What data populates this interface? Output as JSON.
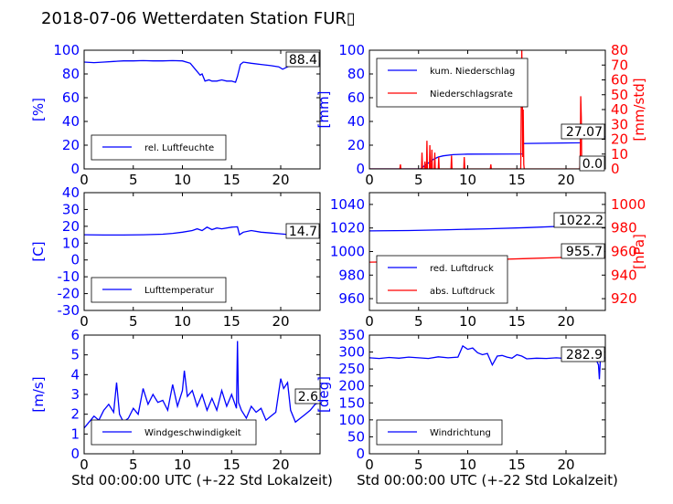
{
  "title": "2018-07-06 Wetterdaten Station FUR▯",
  "xlabel": "Std 00:00:00 UTC (+-22 Std Lokalzeit)",
  "colors": {
    "left_axis": "#0000ff",
    "right_axis": "#ff0000",
    "line_primary": "#0000ff",
    "line_secondary": "#ff0000"
  },
  "chart_data": [
    {
      "type": "line",
      "ylabel": "[%]",
      "xlim": [
        0,
        24
      ],
      "ylim": [
        0,
        100
      ],
      "xticks": [
        0,
        5,
        10,
        15,
        20
      ],
      "yticks": [
        0,
        20,
        40,
        60,
        80,
        100
      ],
      "legend": {
        "position": "lower-left",
        "entries": [
          "rel. Luftfeuchte"
        ]
      },
      "annotation": "88.4",
      "series": [
        {
          "name": "rel. Luftfeuchte",
          "color": "#0000ff",
          "x": [
            0,
            1,
            2,
            3,
            4,
            5,
            6,
            7,
            8,
            9,
            10,
            10.8,
            11.3,
            11.8,
            12.0,
            12.3,
            12.7,
            13.0,
            13.5,
            14.0,
            14.5,
            15.0,
            15.4,
            15.6,
            15.9,
            16.2,
            17,
            18,
            19,
            19.8,
            20.2,
            20.7,
            21.3,
            22,
            23,
            24
          ],
          "y": [
            90,
            89.5,
            90,
            90.5,
            91,
            91,
            91.2,
            91,
            91,
            91.2,
            91,
            89,
            84,
            79,
            80,
            74,
            75,
            74,
            74,
            75,
            74,
            74,
            73,
            78,
            88,
            90,
            89,
            88,
            87,
            86,
            84,
            86,
            88,
            88.5,
            88.4,
            88.4
          ]
        }
      ]
    },
    {
      "type": "line",
      "ylabel": "[mm]",
      "y2label": "[mm/std]",
      "xlim": [
        0,
        24
      ],
      "ylim": [
        0,
        100
      ],
      "y2lim": [
        0,
        80
      ],
      "xticks": [
        0,
        5,
        10,
        15,
        20
      ],
      "yticks": [
        0,
        20,
        40,
        60,
        80,
        100
      ],
      "y2ticks": [
        0,
        10,
        20,
        30,
        40,
        50,
        60,
        70,
        80
      ],
      "legend": {
        "position": "upper-left",
        "entries": [
          "kum. Niederschlag",
          "Niederschlagsrate"
        ]
      },
      "annotations": [
        "27.07",
        "0.0"
      ],
      "series": [
        {
          "name": "kum. Niederschlag",
          "color": "#0000ff",
          "axis": "left",
          "x": [
            0,
            5.2,
            5.5,
            6.0,
            6.5,
            7.0,
            7.5,
            8.5,
            10.0,
            15.6,
            15.65,
            16.0,
            21.5,
            21.55,
            24
          ],
          "y": [
            0,
            0,
            2,
            5,
            8,
            10,
            11,
            12,
            12.5,
            12.6,
            21.4,
            21.5,
            22,
            27.07,
            27.07
          ]
        },
        {
          "name": "Niederschlagsrate",
          "color": "#ff0000",
          "axis": "right",
          "x": [
            0,
            3.1,
            3.15,
            3.2,
            5.3,
            5.35,
            5.4,
            5.6,
            5.65,
            5.7,
            5.8,
            5.85,
            5.9,
            6.1,
            6.15,
            6.2,
            6.3,
            6.35,
            6.4,
            6.6,
            6.65,
            6.7,
            7.0,
            7.05,
            7.1,
            8.3,
            8.35,
            8.4,
            9.6,
            9.65,
            9.7,
            12.3,
            12.35,
            12.4,
            15.4,
            15.45,
            15.5,
            15.55,
            15.6,
            15.65,
            15.7,
            15.75,
            21.4,
            21.45,
            21.5,
            21.55,
            21.6,
            24
          ],
          "y": [
            0,
            0,
            3,
            0,
            0,
            11,
            0,
            0,
            5,
            0,
            0,
            19,
            0,
            0,
            16,
            0,
            0,
            13,
            0,
            0,
            11,
            0,
            0,
            8,
            0,
            0,
            9,
            0,
            0,
            8,
            0,
            0,
            3,
            0,
            0,
            45,
            80,
            60,
            8,
            40,
            3,
            0,
            0,
            10,
            49,
            35,
            0,
            0
          ]
        }
      ]
    },
    {
      "type": "line",
      "ylabel": "[C]",
      "xlim": [
        0,
        24
      ],
      "ylim": [
        -30,
        40
      ],
      "xticks": [
        0,
        5,
        10,
        15,
        20
      ],
      "yticks": [
        -30,
        -20,
        -10,
        0,
        10,
        20,
        30,
        40
      ],
      "legend": {
        "position": "lower-left",
        "entries": [
          "Lufttemperatur"
        ]
      },
      "annotation": "14.7",
      "series": [
        {
          "name": "Lufttemperatur",
          "color": "#0000ff",
          "x": [
            0,
            2,
            4,
            6,
            8,
            9,
            10,
            11,
            11.5,
            12,
            12.5,
            13,
            13.5,
            14,
            15,
            15.6,
            15.8,
            16.2,
            17,
            18,
            19,
            20,
            21,
            22,
            23,
            24
          ],
          "y": [
            15,
            14.8,
            14.8,
            15,
            15.3,
            15.8,
            16.5,
            17.5,
            18.5,
            17.5,
            19.5,
            18,
            19,
            18.5,
            19.5,
            19.7,
            15,
            16.5,
            17.5,
            16.5,
            16,
            15.5,
            15,
            14.8,
            14.7,
            14.7
          ]
        }
      ]
    },
    {
      "type": "line",
      "ylabel": "",
      "y2label": "[hPa]",
      "xlim": [
        0,
        24
      ],
      "ylim": [
        950,
        1050
      ],
      "y2lim": [
        910,
        1010
      ],
      "xticks": [
        0,
        5,
        10,
        15,
        20
      ],
      "yticks": [
        960,
        980,
        1000,
        1020,
        1040
      ],
      "y2ticks": [
        920,
        940,
        960,
        980,
        1000
      ],
      "legend": {
        "position": "lower-left",
        "entries": [
          "red. Luftdruck",
          "abs. Luftdruck"
        ]
      },
      "annotations": [
        "1022.2",
        "955.7"
      ],
      "series": [
        {
          "name": "red. Luftdruck",
          "color": "#0000ff",
          "axis": "left",
          "x": [
            0,
            4,
            8,
            12,
            16,
            20,
            24
          ],
          "y": [
            1017.5,
            1017.8,
            1018.5,
            1019.3,
            1020.3,
            1021.6,
            1022.2
          ]
        },
        {
          "name": "abs. Luftdruck",
          "color": "#ff0000",
          "axis": "right",
          "x": [
            0,
            4,
            8,
            12,
            16,
            20,
            24
          ],
          "y": [
            951,
            951.5,
            952.2,
            953,
            954,
            955,
            955.7
          ]
        }
      ]
    },
    {
      "type": "line",
      "ylabel": "[m/s]",
      "xlim": [
        0,
        24
      ],
      "ylim": [
        0,
        6
      ],
      "xticks": [
        0,
        5,
        10,
        15,
        20
      ],
      "yticks": [
        0,
        1,
        2,
        3,
        4,
        5,
        6
      ],
      "legend": {
        "position": "lower-left",
        "entries": [
          "Windgeschwindigkeit"
        ]
      },
      "annotation": "2.6",
      "series": [
        {
          "name": "Windgeschwindigkeit",
          "color": "#0000ff",
          "x": [
            0,
            0.5,
            1,
            1.5,
            2,
            2.5,
            3,
            3.3,
            3.6,
            4,
            4.5,
            5,
            5.5,
            6,
            6.5,
            7,
            7.5,
            8,
            8.5,
            9,
            9.5,
            10,
            10.2,
            10.5,
            11,
            11.5,
            12,
            12.5,
            13,
            13.5,
            14,
            14.5,
            15,
            15.5,
            15.6,
            15.7,
            16,
            16.5,
            17,
            17.5,
            18,
            18.5,
            19,
            19.5,
            20,
            20.3,
            20.7,
            21,
            21.5,
            22,
            22.5,
            23,
            23.5,
            24
          ],
          "y": [
            1.3,
            1.6,
            1.9,
            1.7,
            2.2,
            2.5,
            2.1,
            3.6,
            2.0,
            1.6,
            1.8,
            2.3,
            2.0,
            3.3,
            2.5,
            3.0,
            2.6,
            2.7,
            2.2,
            3.5,
            2.4,
            3.2,
            4.2,
            2.9,
            3.2,
            2.4,
            3.0,
            2.2,
            2.8,
            2.2,
            3.2,
            2.4,
            3.0,
            2.3,
            5.7,
            2.6,
            2.2,
            1.8,
            2.4,
            2.1,
            2.3,
            1.7,
            1.9,
            2.1,
            3.8,
            3.3,
            3.6,
            2.2,
            1.6,
            1.8,
            2.0,
            2.2,
            2.5,
            2.6
          ]
        }
      ]
    },
    {
      "type": "line",
      "ylabel": "[deg]",
      "xlim": [
        0,
        24
      ],
      "ylim": [
        0,
        350
      ],
      "xticks": [
        0,
        5,
        10,
        15,
        20
      ],
      "yticks": [
        0,
        50,
        100,
        150,
        200,
        250,
        300,
        350
      ],
      "legend": {
        "position": "lower-left",
        "entries": [
          "Windrichtung"
        ]
      },
      "annotation": "282.9",
      "series": [
        {
          "name": "Windrichtung",
          "color": "#0000ff",
          "x": [
            0,
            1,
            2,
            3,
            4,
            5,
            6,
            7,
            8,
            9,
            9.5,
            10,
            10.5,
            11,
            11.5,
            12,
            12.5,
            13,
            13.5,
            14,
            14.5,
            15,
            15.5,
            16,
            17,
            18,
            19,
            20,
            21,
            22,
            23,
            23.3,
            23.4,
            23.5,
            24
          ],
          "y": [
            283,
            281,
            284,
            282,
            285,
            283,
            281,
            286,
            283,
            285,
            318,
            308,
            312,
            298,
            292,
            296,
            262,
            288,
            290,
            285,
            282,
            292,
            288,
            280,
            282,
            281,
            283,
            281,
            282,
            283,
            282,
            262,
            220,
            282,
            282.9
          ]
        }
      ]
    }
  ]
}
